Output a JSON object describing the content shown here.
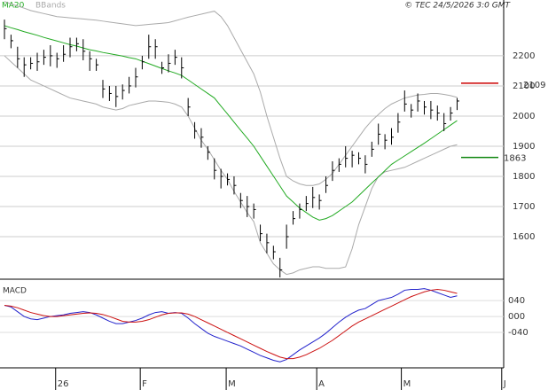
{
  "chart_data": [
    {
      "type": "ohlc",
      "legend_ma": {
        "name": "MA20",
        "color": "#22aa22"
      },
      "legend_bb": {
        "name": "BBands",
        "color": "#aaaaaa"
      },
      "credit": "© TEC 24/5/2026 3:0 GMT",
      "color": "#000000",
      "high": [
        2320,
        2270,
        2230,
        2195,
        2195,
        2210,
        2220,
        2235,
        2210,
        2235,
        2260,
        2260,
        2255,
        2215,
        2190,
        2120,
        2100,
        2100,
        2105,
        2130,
        2160,
        2200,
        2270,
        2255,
        2180,
        2205,
        2220,
        2195,
        2060,
        1980,
        1960,
        1900,
        1860,
        1825,
        1810,
        1800,
        1745,
        1735,
        1710,
        1640,
        1610,
        1570,
        1530,
        1640,
        1685,
        1710,
        1735,
        1765,
        1740,
        1800,
        1850,
        1860,
        1900,
        1885,
        1880,
        1870,
        1915,
        1975,
        1940,
        1960,
        2010,
        2085,
        2040,
        2075,
        2050,
        2050,
        2035,
        2010,
        2030,
        2060
      ],
      "low": [
        2255,
        2225,
        2160,
        2130,
        2155,
        2150,
        2170,
        2165,
        2160,
        2180,
        2195,
        2215,
        2185,
        2150,
        2150,
        2060,
        2050,
        2030,
        2055,
        2075,
        2095,
        2155,
        2190,
        2190,
        2140,
        2145,
        2170,
        2125,
        2000,
        1925,
        1895,
        1855,
        1790,
        1760,
        1770,
        1740,
        1695,
        1665,
        1660,
        1585,
        1545,
        1525,
        1465,
        1560,
        1640,
        1660,
        1685,
        1695,
        1690,
        1745,
        1785,
        1815,
        1830,
        1830,
        1840,
        1810,
        1865,
        1905,
        1890,
        1905,
        1945,
        2015,
        1995,
        2015,
        2005,
        1990,
        1985,
        1950,
        1985,
        2020
      ],
      "close": [
        2290,
        2250,
        2190,
        2170,
        2175,
        2180,
        2195,
        2200,
        2190,
        2205,
        2230,
        2240,
        2215,
        2190,
        2170,
        2090,
        2075,
        2065,
        2085,
        2100,
        2130,
        2180,
        2230,
        2230,
        2160,
        2175,
        2195,
        2160,
        2030,
        1950,
        1930,
        1880,
        1820,
        1800,
        1790,
        1770,
        1720,
        1700,
        1690,
        1610,
        1580,
        1550,
        1490,
        1600,
        1660,
        1690,
        1710,
        1730,
        1720,
        1770,
        1820,
        1840,
        1860,
        1870,
        1860,
        1840,
        1890,
        1940,
        1920,
        1930,
        1980,
        2040,
        2020,
        2050,
        2030,
        2020,
        2010,
        1975,
        2010,
        2050
      ],
      "ma20": [
        2300,
        2293,
        2287,
        2280,
        2274,
        2268,
        2261,
        2255,
        2249,
        2243,
        2237,
        2232,
        2226,
        2220,
        2216,
        2211,
        2207,
        2203,
        2199,
        2194,
        2190,
        2182,
        2174,
        2166,
        2158,
        2150,
        2143,
        2135,
        2120,
        2105,
        2090,
        2075,
        2060,
        2033,
        2007,
        1980,
        1953,
        1927,
        1900,
        1867,
        1834,
        1801,
        1768,
        1735,
        1715,
        1695,
        1680,
        1665,
        1655,
        1660,
        1670,
        1685,
        1700,
        1715,
        1736,
        1757,
        1778,
        1798,
        1819,
        1840,
        1854,
        1868,
        1882,
        1896,
        1910,
        1925,
        1940,
        1955,
        1970,
        1985
      ],
      "bb_upper": [
        2380,
        2372,
        2365,
        2358,
        2350,
        2345,
        2340,
        2335,
        2330,
        2328,
        2326,
        2324,
        2322,
        2320,
        2318,
        2315,
        2312,
        2309,
        2306,
        2303,
        2300,
        2302,
        2304,
        2306,
        2308,
        2310,
        2316,
        2322,
        2328,
        2333,
        2338,
        2343,
        2348,
        2330,
        2300,
        2260,
        2220,
        2180,
        2140,
        2080,
        2000,
        1930,
        1860,
        1800,
        1785,
        1775,
        1770,
        1770,
        1775,
        1790,
        1810,
        1840,
        1870,
        1900,
        1930,
        1960,
        1985,
        2005,
        2025,
        2040,
        2050,
        2060,
        2065,
        2070,
        2072,
        2075,
        2075,
        2072,
        2068,
        2062
      ],
      "bb_lower": [
        2200,
        2180,
        2160,
        2140,
        2120,
        2110,
        2100,
        2090,
        2080,
        2070,
        2060,
        2055,
        2050,
        2045,
        2040,
        2030,
        2025,
        2020,
        2025,
        2035,
        2040,
        2045,
        2050,
        2050,
        2048,
        2046,
        2040,
        2030,
        2000,
        1960,
        1920,
        1890,
        1855,
        1820,
        1790,
        1750,
        1715,
        1680,
        1650,
        1580,
        1545,
        1510,
        1490,
        1475,
        1480,
        1490,
        1495,
        1500,
        1500,
        1495,
        1495,
        1495,
        1500,
        1560,
        1640,
        1700,
        1760,
        1800,
        1815,
        1820,
        1825,
        1830,
        1840,
        1850,
        1860,
        1870,
        1880,
        1890,
        1900,
        1905
      ],
      "levels": [
        {
          "value": 2109,
          "color": "#cc0000"
        },
        {
          "value": 1863,
          "color": "#118811"
        }
      ],
      "ylim": [
        1459,
        2385
      ],
      "yticks": [
        1600,
        1700,
        1800,
        1900,
        2000,
        2100,
        2200
      ],
      "grid": true,
      "xlim": [
        -0.68,
        76.1
      ],
      "xticks": [
        {
          "value": 7.8,
          "label": "26"
        },
        {
          "value": 20.7,
          "label": "F"
        },
        {
          "value": 33.8,
          "label": "M"
        },
        {
          "value": 47.6,
          "label": "A"
        },
        {
          "value": 60.5,
          "label": "M"
        },
        {
          "value": 75.8,
          "label": "J"
        }
      ]
    },
    {
      "type": "macd",
      "title": "MACD",
      "macd": {
        "color": "#2222cc",
        "values": [
          28,
          24,
          12,
          0,
          -6,
          -8,
          -4,
          0,
          2,
          4,
          8,
          10,
          12,
          10,
          4,
          -4,
          -12,
          -18,
          -18,
          -14,
          -10,
          -4,
          4,
          10,
          12,
          8,
          10,
          8,
          -4,
          -18,
          -30,
          -42,
          -50,
          -56,
          -62,
          -68,
          -74,
          -82,
          -90,
          -98,
          -104,
          -110,
          -114,
          -108,
          -96,
          -84,
          -74,
          -64,
          -54,
          -42,
          -28,
          -14,
          -2,
          8,
          16,
          20,
          30,
          40,
          44,
          48,
          56,
          66,
          68,
          68,
          70,
          66,
          60,
          54,
          48,
          52
        ]
      },
      "signal": {
        "color": "#cc1111",
        "values": [
          28,
          26,
          22,
          16,
          10,
          6,
          2,
          0,
          0,
          2,
          4,
          6,
          8,
          9,
          8,
          5,
          0,
          -6,
          -12,
          -14,
          -14,
          -12,
          -8,
          -2,
          4,
          8,
          9,
          9,
          6,
          0,
          -8,
          -16,
          -24,
          -32,
          -40,
          -48,
          -56,
          -64,
          -72,
          -80,
          -88,
          -95,
          -102,
          -106,
          -106,
          -102,
          -96,
          -88,
          -80,
          -70,
          -60,
          -48,
          -36,
          -24,
          -14,
          -6,
          2,
          10,
          18,
          26,
          34,
          42,
          50,
          56,
          62,
          66,
          68,
          66,
          62,
          58
        ]
      },
      "ylim": [
        -129,
        87
      ],
      "yticks": [
        {
          "value": -40,
          "label": "-040"
        },
        {
          "value": 0,
          "label": "000"
        },
        {
          "value": 40,
          "label": "040"
        }
      ],
      "grid": true
    }
  ]
}
